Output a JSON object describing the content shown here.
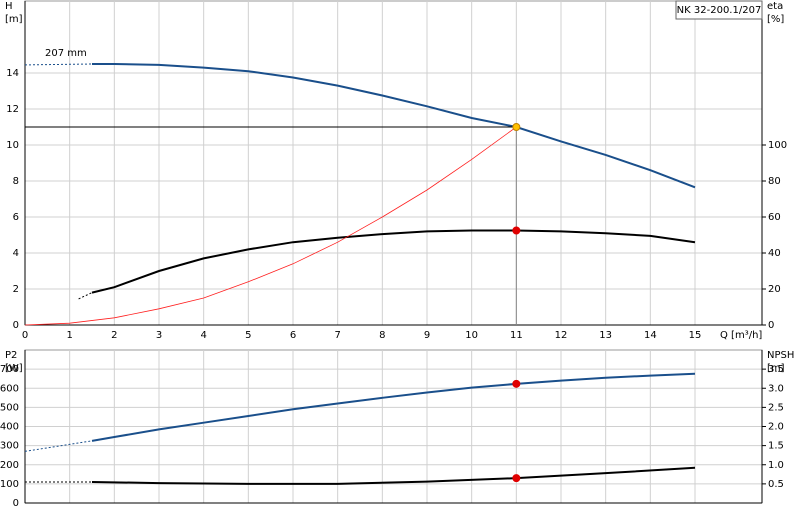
{
  "chart_data": [
    {
      "type": "line",
      "title": "NK 32-200.1/207",
      "annotation": "207 mm",
      "ylabel": "H",
      "yunit": "[m]",
      "y2label": "eta",
      "y2unit": "[%]",
      "xlabel": "Q [m³/h]",
      "xlim": [
        0,
        16.5
      ],
      "xticks": [
        0,
        1,
        2,
        3,
        4,
        5,
        6,
        7,
        8,
        9,
        10,
        11,
        12,
        13,
        14,
        15
      ],
      "xtick_labels": true,
      "ylim": [
        0,
        18
      ],
      "yticks": [
        0,
        2,
        4,
        6,
        8,
        10,
        12,
        14
      ],
      "y2lim": [
        0,
        180
      ],
      "y2ticks": [
        0,
        20,
        40,
        60,
        80,
        100
      ],
      "grid": true,
      "series": [
        {
          "x": [
            0,
            1.5
          ],
          "values": [
            14.45,
            14.5
          ],
          "color": "#1a4f8b",
          "width": 1,
          "dashed": true
        },
        {
          "x": [
            1.5,
            2,
            3,
            4,
            5,
            6,
            7,
            8,
            9,
            10,
            11,
            12,
            13,
            14,
            15
          ],
          "values": [
            14.5,
            14.5,
            14.45,
            14.3,
            14.1,
            13.75,
            13.3,
            12.75,
            12.15,
            11.5,
            11.0,
            10.2,
            9.45,
            8.6,
            7.65
          ],
          "color": "#1a4f8b",
          "width": 2
        },
        {
          "x": [
            1.2,
            1.5
          ],
          "values": [
            14.5,
            18
          ],
          "axis": "y2",
          "color": "#000000",
          "width": 1,
          "dashed": true
        },
        {
          "x": [
            1.5,
            2,
            3,
            4,
            5,
            6,
            7,
            8,
            9,
            10,
            11,
            12,
            13,
            14,
            15
          ],
          "values": [
            18,
            21,
            30,
            37,
            42,
            46,
            48.5,
            50.5,
            52,
            52.5,
            52.5,
            52,
            51,
            49.5,
            46
          ],
          "axis": "y2",
          "color": "#000000",
          "width": 2
        },
        {
          "x": [
            0,
            1,
            2,
            3,
            4,
            5,
            6,
            7,
            8,
            9,
            10,
            11
          ],
          "values": [
            0,
            0.1,
            0.4,
            0.9,
            1.5,
            2.4,
            3.4,
            4.6,
            6.0,
            7.5,
            9.2,
            11.0
          ],
          "color": "#ff2020",
          "width": 0.8
        },
        {
          "x": [
            0,
            11
          ],
          "values": [
            11,
            11
          ],
          "color": "#000000",
          "width": 1
        },
        {
          "x": [
            11,
            11
          ],
          "values": [
            11,
            0
          ],
          "color": "#888888",
          "width": 1
        },
        {
          "x": [
            11
          ],
          "values": [
            11
          ],
          "color": "#ffc000",
          "marker": true
        },
        {
          "x": [
            11
          ],
          "values": [
            52.5
          ],
          "axis": "y2",
          "color": "#e00000",
          "marker": true
        }
      ]
    },
    {
      "type": "line",
      "ylabel": "P2",
      "yunit": "[W]",
      "y2label": "NPSH",
      "y2unit": "[m]",
      "xlim": [
        0,
        16.5
      ],
      "xticks": [
        0,
        1,
        2,
        3,
        4,
        5,
        6,
        7,
        8,
        9,
        10,
        11,
        12,
        13,
        14,
        15
      ],
      "xtick_labels": false,
      "ylim": [
        0,
        800
      ],
      "yticks": [
        0,
        100,
        200,
        300,
        400,
        500,
        600,
        700
      ],
      "y2lim": [
        0,
        4
      ],
      "y2ticks": [
        0.5,
        {
          "value": 1,
          "label": "1.0"
        },
        1.5,
        {
          "value": 2,
          "label": "2.0"
        },
        2.5,
        {
          "value": 3,
          "label": "3.0"
        },
        3.5
      ],
      "grid": true,
      "series": [
        {
          "x": [
            0,
            1.5
          ],
          "values": [
            270,
            325
          ],
          "color": "#1a4f8b",
          "width": 1,
          "dashed": true
        },
        {
          "x": [
            1.5,
            2,
            3,
            4,
            5,
            6,
            7,
            8,
            9,
            10,
            11,
            12,
            13,
            14,
            15
          ],
          "values": [
            325,
            345,
            385,
            420,
            455,
            490,
            520,
            550,
            578,
            603,
            623,
            640,
            655,
            666,
            676
          ],
          "color": "#1a4f8b",
          "width": 2
        },
        {
          "x": [
            0,
            1.5
          ],
          "values": [
            0.55,
            0.55
          ],
          "axis": "y2",
          "color": "#000000",
          "width": 1,
          "dashed": true
        },
        {
          "x": [
            1.5,
            3,
            5,
            7,
            9,
            11,
            13,
            15
          ],
          "values": [
            0.55,
            0.52,
            0.5,
            0.5,
            0.56,
            0.65,
            0.78,
            0.92
          ],
          "axis": "y2",
          "color": "#000000",
          "width": 2
        },
        {
          "x": [
            11
          ],
          "values": [
            623
          ],
          "color": "#e00000",
          "marker": true
        },
        {
          "x": [
            11
          ],
          "values": [
            0.65
          ],
          "axis": "y2",
          "color": "#e00000",
          "marker": true
        }
      ]
    }
  ]
}
